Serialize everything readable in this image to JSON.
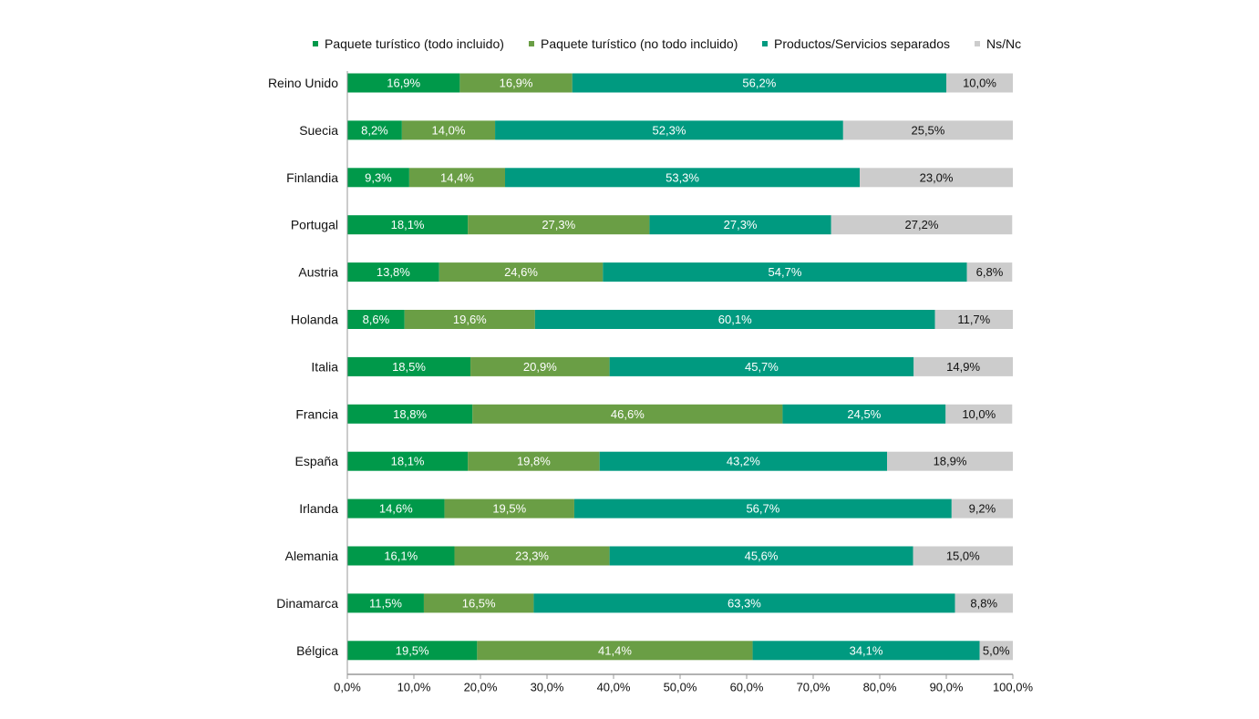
{
  "chart_data": {
    "type": "bar",
    "orientation": "horizontal",
    "stacked": true,
    "title": "",
    "xlabel": "",
    "ylabel": "",
    "xlim": [
      0,
      100
    ],
    "x_ticks": [
      "0,0%",
      "10,0%",
      "20,0%",
      "30,0%",
      "40,0%",
      "50,0%",
      "60,0%",
      "70,0%",
      "80,0%",
      "90,0%",
      "100,0%"
    ],
    "grid": false,
    "legend_position": "top",
    "categories": [
      "Reino Unido",
      "Suecia",
      "Finlandia",
      "Portugal",
      "Austria",
      "Holanda",
      "Italia",
      "Francia",
      "España",
      "Irlanda",
      "Alemania",
      "Dinamarca",
      "Bélgica"
    ],
    "series": [
      {
        "name": "Paquete turístico (todo incluido)",
        "color": "#00994a",
        "label_color": "#ffffff",
        "values": [
          16.9,
          8.2,
          9.3,
          18.1,
          13.8,
          8.6,
          18.5,
          18.8,
          18.1,
          14.6,
          16.1,
          11.5,
          19.5
        ],
        "labels": [
          "16,9%",
          "8,2%",
          "9,3%",
          "18,1%",
          "13,8%",
          "8,6%",
          "18,5%",
          "18,8%",
          "18,1%",
          "14,6%",
          "16,1%",
          "11,5%",
          "19,5%"
        ]
      },
      {
        "name": "Paquete turístico (no todo incluido)",
        "color": "#6a9e45",
        "label_color": "#ffffff",
        "values": [
          16.9,
          14.0,
          14.4,
          27.3,
          24.6,
          19.6,
          20.9,
          46.6,
          19.8,
          19.5,
          23.3,
          16.5,
          41.4
        ],
        "labels": [
          "16,9%",
          "14,0%",
          "14,4%",
          "27,3%",
          "24,6%",
          "19,6%",
          "20,9%",
          "46,6%",
          "19,8%",
          "19,5%",
          "23,3%",
          "16,5%",
          "41,4%"
        ]
      },
      {
        "name": "Productos/Servicios separados",
        "color": "#009a80",
        "label_color": "#ffffff",
        "values": [
          56.2,
          52.3,
          53.3,
          27.3,
          54.7,
          60.1,
          45.7,
          24.5,
          43.2,
          56.7,
          45.6,
          63.3,
          34.1
        ],
        "labels": [
          "56,2%",
          "52,3%",
          "53,3%",
          "27,3%",
          "54,7%",
          "60,1%",
          "45,7%",
          "24,5%",
          "43,2%",
          "56,7%",
          "45,6%",
          "63,3%",
          "34,1%"
        ]
      },
      {
        "name": "Ns/Nc",
        "color": "#cccccc",
        "label_color": "#111111",
        "values": [
          10.0,
          25.5,
          23.0,
          27.2,
          6.8,
          11.7,
          14.9,
          10.0,
          18.9,
          9.2,
          15.0,
          8.8,
          5.0
        ],
        "labels": [
          "10,0%",
          "25,5%",
          "23,0%",
          "27,2%",
          "6,8%",
          "11,7%",
          "14,9%",
          "10,0%",
          "18,9%",
          "9,2%",
          "15,0%",
          "8,8%",
          "5,0%"
        ]
      }
    ]
  }
}
